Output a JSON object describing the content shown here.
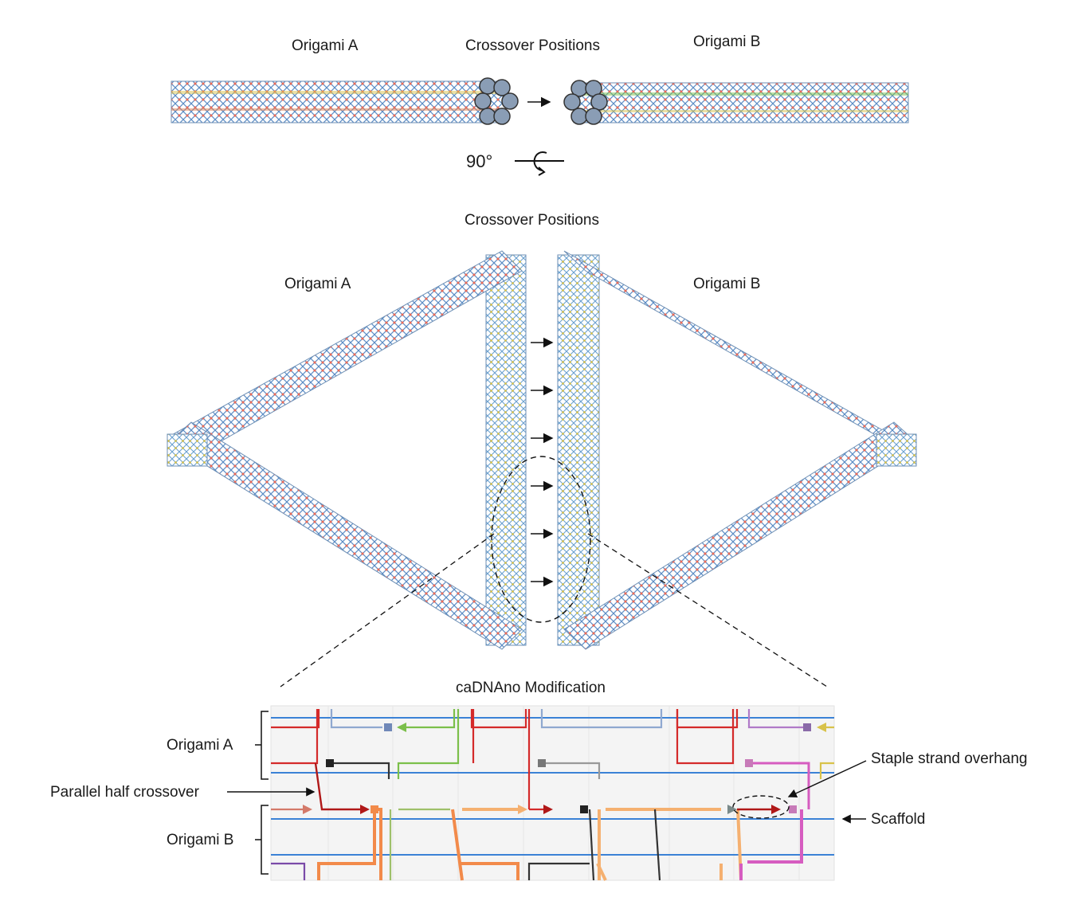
{
  "top_view": {
    "label_left": "Origami A",
    "label_center": "Crossover Positions",
    "label_right": "Origami B",
    "rotation_label": "90°"
  },
  "middle_view": {
    "label_center": "Crossover Positions",
    "label_left": "Origami A",
    "label_right": "Origami B"
  },
  "cadnano": {
    "title": "caDNAno Modification",
    "bracket_a": "Origami A",
    "bracket_b": "Origami B",
    "callout_parallel": "Parallel half crossover",
    "callout_overhang": "Staple strand overhang",
    "callout_scaffold": "Scaffold"
  },
  "colors": {
    "scaffold": "#3b82d6",
    "staple_red": "#d42a2a",
    "staple_orange": "#f28a4a",
    "staple_pink": "#d65cc0",
    "staple_green": "#7bbf4a",
    "staple_lightorange": "#f5b070",
    "staple_gray": "#7a7a7a"
  }
}
